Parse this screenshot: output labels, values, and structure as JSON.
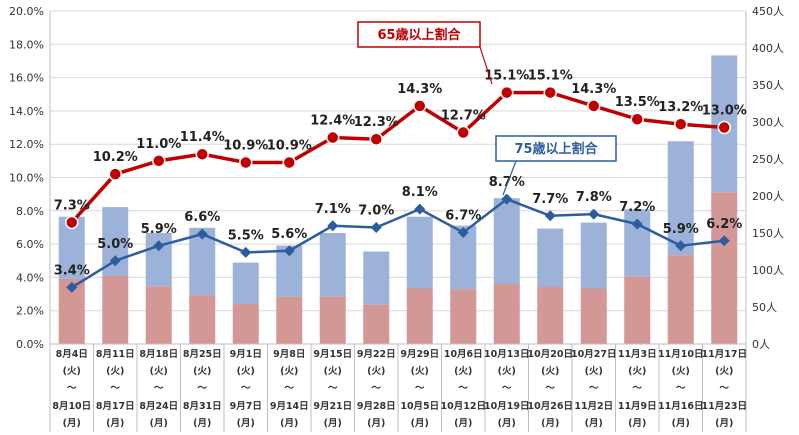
{
  "chart_data": {
    "type": "bar+line",
    "categories": [
      {
        "start": "8月4日",
        "start_day": "(火)",
        "sep": "～",
        "end": "8月10日",
        "end_day": "(月)"
      },
      {
        "start": "8月11日",
        "start_day": "(火)",
        "sep": "～",
        "end": "8月17日",
        "end_day": "(月)"
      },
      {
        "start": "8月18日",
        "start_day": "(火)",
        "sep": "～",
        "end": "8月24日",
        "end_day": "(月)"
      },
      {
        "start": "8月25日",
        "start_day": "(火)",
        "sep": "～",
        "end": "8月31日",
        "end_day": "(月)"
      },
      {
        "start": "9月1日",
        "start_day": "(火)",
        "sep": "～",
        "end": "9月7日",
        "end_day": "(月)"
      },
      {
        "start": "9月8日",
        "start_day": "(火)",
        "sep": "～",
        "end": "9月14日",
        "end_day": "(月)"
      },
      {
        "start": "9月15日",
        "start_day": "(火)",
        "sep": "～",
        "end": "9月21日",
        "end_day": "(月)"
      },
      {
        "start": "9月22日",
        "start_day": "(火)",
        "sep": "～",
        "end": "9月28日",
        "end_day": "(月)"
      },
      {
        "start": "9月29日",
        "start_day": "(火)",
        "sep": "～",
        "end": "10月5日",
        "end_day": "(月)"
      },
      {
        "start": "10月6日",
        "start_day": "(火)",
        "sep": "～",
        "end": "10月12日",
        "end_day": "(月)"
      },
      {
        "start": "10月13日",
        "start_day": "(火)",
        "sep": "～",
        "end": "10月19日",
        "end_day": "(月)"
      },
      {
        "start": "10月20日",
        "start_day": "(火)",
        "sep": "～",
        "end": "10月26日",
        "end_day": "(月)"
      },
      {
        "start": "10月27日",
        "start_day": "(火)",
        "sep": "～",
        "end": "11月2日",
        "end_day": "(月)"
      },
      {
        "start": "11月3日",
        "start_day": "(火)",
        "sep": "～",
        "end": "11月9日",
        "end_day": "(月)"
      },
      {
        "start": "11月10日",
        "start_day": "(火)",
        "sep": "～",
        "end": "11月16日",
        "end_day": "(月)"
      },
      {
        "start": "11月17日",
        "start_day": "(火)",
        "sep": "～",
        "end": "11月23日",
        "end_day": "(月)"
      }
    ],
    "left_axis": {
      "range": [
        0,
        20
      ],
      "ticks": [
        "0.0%",
        "2.0%",
        "4.0%",
        "6.0%",
        "8.0%",
        "10.0%",
        "12.0%",
        "14.0%",
        "16.0%",
        "18.0%",
        "20.0%"
      ]
    },
    "right_axis": {
      "range": [
        0,
        450
      ],
      "ticks": [
        "0人",
        "50人",
        "100人",
        "150人",
        "200人",
        "250人",
        "300人",
        "350人",
        "400人",
        "450人"
      ]
    },
    "bars": {
      "lower": {
        "color": "#d39796",
        "values": [
          88,
          92,
          78,
          66,
          54,
          64,
          64,
          53,
          75,
          74,
          81,
          77,
          75,
          91,
          120,
          205
        ]
      },
      "total": {
        "color": "#9db2d8",
        "values": [
          172,
          185,
          150,
          157,
          110,
          133,
          150,
          125,
          172,
          160,
          197,
          156,
          164,
          182,
          274,
          390
        ]
      }
    },
    "lines": [
      {
        "name": "65歳以上割合",
        "color": "#c00000",
        "values": [
          7.3,
          10.2,
          11.0,
          11.4,
          10.9,
          10.9,
          12.4,
          12.3,
          14.3,
          12.7,
          15.1,
          15.1,
          14.3,
          13.5,
          13.2,
          13.0
        ],
        "labels": [
          "7.3%",
          "10.2%",
          "11.0%",
          "11.4%",
          "10.9%",
          "10.9%",
          "12.4%",
          "12.3%",
          "14.3%",
          "12.7%",
          "15.1%",
          "15.1%",
          "14.3%",
          "13.5%",
          "13.2%",
          "13.0%"
        ]
      },
      {
        "name": "75歳以上割合",
        "color": "#2e5d9f",
        "values": [
          3.4,
          5.0,
          5.9,
          6.6,
          5.5,
          5.6,
          7.1,
          7.0,
          8.1,
          6.7,
          8.7,
          7.7,
          7.8,
          7.2,
          5.9,
          6.2
        ],
        "labels": [
          "3.4%",
          "5.0%",
          "5.9%",
          "6.6%",
          "5.5%",
          "5.6%",
          "7.1%",
          "7.0%",
          "8.1%",
          "6.7%",
          "8.7%",
          "7.7%",
          "7.8%",
          "7.2%",
          "5.9%",
          "6.2%"
        ]
      }
    ],
    "legend": "callouts"
  }
}
